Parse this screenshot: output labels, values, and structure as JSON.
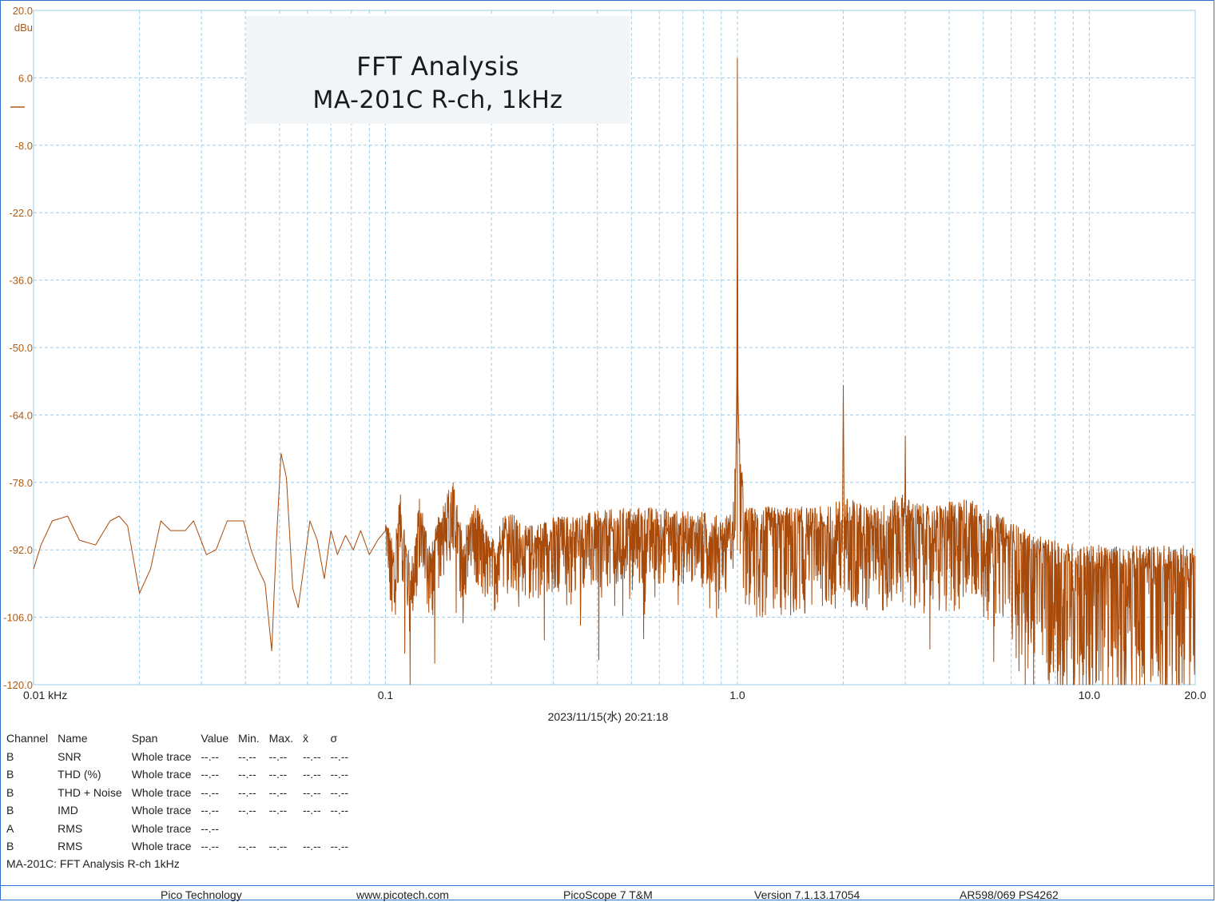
{
  "chart_data": {
    "type": "line",
    "title": [
      "FFT Analysis",
      "MA-201C R-ch, 1kHz"
    ],
    "ylabel": "dBu",
    "xscale": "log",
    "xlim": [
      0.01,
      20.0
    ],
    "ylim": [
      -120.0,
      20.0
    ],
    "grid": true,
    "y_ticks": [
      "20.0",
      "6.0",
      "-8.0",
      "-22.0",
      "-36.0",
      "-50.0",
      "-64.0",
      "-78.0",
      "-92.0",
      "-106.0",
      "-120.0"
    ],
    "x_ticks": [
      {
        "value": 0.01,
        "label": "0.01 kHz"
      },
      {
        "value": 0.1,
        "label": "0.1"
      },
      {
        "value": 1.0,
        "label": "1.0"
      },
      {
        "value": 10.0,
        "label": "10.0"
      },
      {
        "value": 20.0,
        "label": "20.0"
      }
    ],
    "series_color": "#a84a0a",
    "series": [
      {
        "anchors_kHz_dBu": [
          [
            0.01,
            -96
          ],
          [
            0.0105,
            -91
          ],
          [
            0.0113,
            -86
          ],
          [
            0.0125,
            -85
          ],
          [
            0.0135,
            -90
          ],
          [
            0.015,
            -91
          ],
          [
            0.0165,
            -86
          ],
          [
            0.0175,
            -85
          ],
          [
            0.0185,
            -87
          ],
          [
            0.02,
            -101
          ],
          [
            0.0215,
            -96
          ],
          [
            0.023,
            -86
          ],
          [
            0.0245,
            -88
          ],
          [
            0.027,
            -88
          ],
          [
            0.0285,
            -86
          ],
          [
            0.031,
            -93
          ],
          [
            0.033,
            -92
          ],
          [
            0.0355,
            -86
          ],
          [
            0.0375,
            -86
          ],
          [
            0.0395,
            -86
          ],
          [
            0.0415,
            -92
          ],
          [
            0.0435,
            -96
          ],
          [
            0.0455,
            -99
          ],
          [
            0.0475,
            -113
          ],
          [
            0.049,
            -90
          ],
          [
            0.0505,
            -72
          ],
          [
            0.0523,
            -77
          ],
          [
            0.0545,
            -100
          ],
          [
            0.0565,
            -104
          ],
          [
            0.0585,
            -96
          ],
          [
            0.061,
            -86
          ],
          [
            0.064,
            -90
          ],
          [
            0.067,
            -98
          ],
          [
            0.07,
            -88
          ],
          [
            0.073,
            -93
          ],
          [
            0.077,
            -89
          ],
          [
            0.081,
            -92
          ],
          [
            0.085,
            -88
          ],
          [
            0.09,
            -93
          ],
          [
            0.095,
            -90
          ],
          [
            0.1,
            -88
          ],
          [
            0.105,
            -96
          ],
          [
            0.11,
            -85
          ],
          [
            0.118,
            -100
          ],
          [
            0.125,
            -86
          ],
          [
            0.135,
            -96
          ],
          [
            0.145,
            -87
          ],
          [
            0.155,
            -82
          ],
          [
            0.165,
            -93
          ],
          [
            0.18,
            -87
          ],
          [
            0.2,
            -95
          ],
          [
            0.22,
            -88
          ],
          [
            0.25,
            -92
          ],
          [
            0.3,
            -90
          ],
          [
            0.4,
            -89
          ],
          [
            0.5,
            -88
          ],
          [
            0.6,
            -88
          ],
          [
            0.7,
            -89
          ],
          [
            0.8,
            -89
          ],
          [
            0.9,
            -90
          ],
          [
            0.97,
            -89
          ],
          [
            0.99,
            -75
          ],
          [
            0.997,
            -55
          ],
          [
            1.0,
            10
          ],
          [
            1.003,
            -55
          ],
          [
            1.01,
            -72
          ],
          [
            1.05,
            -88
          ],
          [
            1.2,
            -88
          ],
          [
            1.5,
            -88
          ],
          [
            1.8,
            -88
          ],
          [
            1.99,
            -86
          ],
          [
            2.0,
            -57
          ],
          [
            2.01,
            -86
          ],
          [
            2.5,
            -88
          ],
          [
            2.99,
            -85
          ],
          [
            3.0,
            -68
          ],
          [
            3.01,
            -86
          ],
          [
            3.5,
            -88
          ],
          [
            4.0,
            -87
          ],
          [
            4.5,
            -86
          ],
          [
            5.0,
            -88
          ],
          [
            6.0,
            -91
          ],
          [
            7.0,
            -94
          ],
          [
            8.0,
            -95
          ],
          [
            10.0,
            -96
          ],
          [
            12.0,
            -96
          ],
          [
            15.0,
            -96
          ],
          [
            17.0,
            -96
          ],
          [
            20.0,
            -96
          ]
        ]
      }
    ]
  },
  "timestamp": "2023/11/15(水) 20:21:18",
  "measurements": {
    "headers": [
      "Channel",
      "Name",
      "Span",
      "Value",
      "Min.",
      "Max.",
      "x̄",
      "σ"
    ],
    "rows": [
      [
        "B",
        "SNR",
        "Whole trace",
        "--.--",
        "--.--",
        "--.--",
        "--.--",
        "--.--"
      ],
      [
        "B",
        "THD (%)",
        "Whole trace",
        "--.--",
        "--.--",
        "--.--",
        "--.--",
        "--.--"
      ],
      [
        "B",
        "THD + Noise",
        "Whole trace",
        "--.--",
        "--.--",
        "--.--",
        "--.--",
        "--.--"
      ],
      [
        "B",
        "IMD",
        "Whole trace",
        "--.--",
        "--.--",
        "--.--",
        "--.--",
        "--.--"
      ],
      [
        "A",
        "RMS",
        "Whole trace",
        "--.--",
        "",
        "",
        "",
        ""
      ],
      [
        "B",
        "RMS",
        "Whole trace",
        "--.--",
        "--.--",
        "--.--",
        "--.--",
        "--.--"
      ]
    ]
  },
  "caption": "MA-201C: FFT Analysis R-ch 1kHz",
  "footer": {
    "company": "Pico Technology",
    "website": "www.picotech.com",
    "software": "PicoScope 7 T&M",
    "version": "Version 7.1.13.17054",
    "device": "AR598/069 PS4262"
  }
}
